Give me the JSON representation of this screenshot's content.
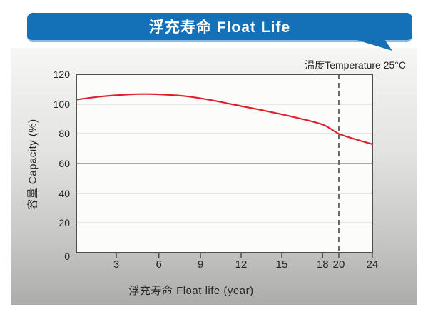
{
  "title": "浮充寿命 Float Life",
  "colors": {
    "banner_blue": "#1471b8",
    "banner_edge": "#93b9dc",
    "curve_red": "#e1202e",
    "grid_gray": "#4f4f4d",
    "dashed_gray": "#6a6a68",
    "panel_gray_top": "#f6f6f4",
    "panel_gray_bottom": "#acacaa"
  },
  "chart_data": {
    "type": "line",
    "title": "浮充寿命 Float Life",
    "xlabel": "浮充寿命 Float life (year)",
    "ylabel": "容量 Capacity (%)",
    "annotation": "温度Temperature 25°C",
    "xlim": [
      0,
      24
    ],
    "ylim": [
      0,
      120
    ],
    "x_ticks": [
      3,
      6,
      9,
      12,
      15,
      18,
      20,
      24
    ],
    "y_ticks": [
      0,
      20,
      40,
      60,
      80,
      100,
      120
    ],
    "x_tick_fractions": [
      [
        0,
        0
      ],
      [
        3,
        0.135
      ],
      [
        6,
        0.2788
      ],
      [
        9,
        0.4193
      ],
      [
        12,
        0.5566
      ],
      [
        15,
        0.694
      ],
      [
        18,
        0.832
      ],
      [
        20,
        0.8867
      ],
      [
        24,
        1.0
      ]
    ],
    "grid": true,
    "legend_position": "none",
    "marker_line_year": 20,
    "series": [
      {
        "name": "capacity-vs-float-life",
        "color": "#e1202e",
        "points": [
          [
            0,
            103
          ],
          [
            2,
            105.2
          ],
          [
            4,
            106.5
          ],
          [
            5,
            106.7
          ],
          [
            6,
            106.5
          ],
          [
            8,
            105.2
          ],
          [
            10,
            102.3
          ],
          [
            12,
            98.6
          ],
          [
            14,
            95
          ],
          [
            16,
            91
          ],
          [
            18,
            86.2
          ],
          [
            20,
            80
          ],
          [
            22,
            76.3
          ],
          [
            24,
            73
          ]
        ]
      }
    ]
  }
}
